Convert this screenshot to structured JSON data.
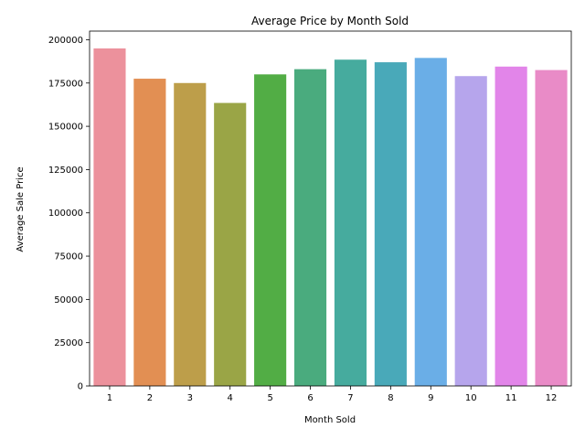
{
  "chart_data": {
    "type": "bar",
    "title": "Average Price by Month Sold",
    "xlabel": "Month Sold",
    "ylabel": "Average Sale Price",
    "categories": [
      "1",
      "2",
      "3",
      "4",
      "5",
      "6",
      "7",
      "8",
      "9",
      "10",
      "11",
      "12"
    ],
    "values": [
      195000,
      177500,
      175000,
      163500,
      180000,
      183000,
      188500,
      187000,
      189500,
      179000,
      184500,
      182500
    ],
    "colors": [
      "#ec919c",
      "#e28f53",
      "#bd9e4a",
      "#9aa546",
      "#52ad45",
      "#4aab7e",
      "#46ab9e",
      "#49a9b9",
      "#6aaee7",
      "#b6a5ec",
      "#e285e9",
      "#e98bc7"
    ],
    "ylim": [
      0,
      205000
    ],
    "yticks": [
      "0",
      "25000",
      "50000",
      "75000",
      "100000",
      "125000",
      "150000",
      "175000",
      "200000"
    ],
    "grid": false,
    "legend": "none"
  }
}
